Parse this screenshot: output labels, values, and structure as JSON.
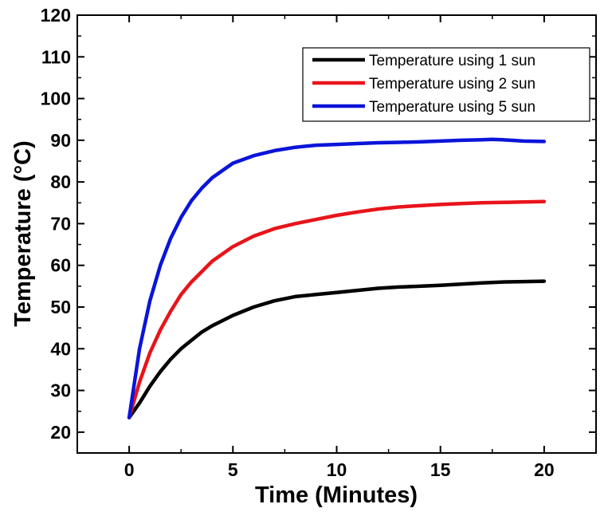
{
  "chart_data": {
    "type": "line",
    "xlabel": "Time (Minutes)",
    "ylabel": "Temperature (°C)",
    "xlim": [
      -2.5,
      22.5
    ],
    "ylim": [
      15,
      120
    ],
    "xticks": [
      0,
      5,
      10,
      15,
      20
    ],
    "yticks": [
      20,
      30,
      40,
      50,
      60,
      70,
      80,
      90,
      100,
      110,
      120
    ],
    "grid": false,
    "legend_position": "top-right",
    "series": [
      {
        "name": "Temperature using 1 sun",
        "color": "#000000",
        "x": [
          0,
          0.5,
          1,
          1.5,
          2,
          2.5,
          3,
          3.5,
          4,
          5,
          6,
          7,
          8,
          9,
          10,
          11,
          12,
          13,
          14,
          15,
          16,
          17,
          18,
          19,
          20
        ],
        "values": [
          23.5,
          27,
          31,
          34.5,
          37.5,
          40,
          42,
          44,
          45.5,
          48,
          50,
          51.5,
          52.5,
          53,
          53.5,
          54,
          54.5,
          54.8,
          55,
          55.2,
          55.5,
          55.8,
          56,
          56.1,
          56.2
        ]
      },
      {
        "name": "Temperature using 2 sun",
        "color": "#e8141a",
        "x": [
          0,
          0.5,
          1,
          1.5,
          2,
          2.5,
          3,
          3.5,
          4,
          5,
          6,
          7,
          8,
          9,
          10,
          11,
          12,
          13,
          14,
          15,
          16,
          17,
          18,
          19,
          20
        ],
        "values": [
          23.5,
          32,
          39,
          44.5,
          49,
          53,
          56,
          58.5,
          61,
          64.5,
          67,
          68.8,
          70,
          71,
          72,
          72.8,
          73.5,
          74,
          74.3,
          74.6,
          74.8,
          75,
          75.1,
          75.2,
          75.3
        ]
      },
      {
        "name": "Temperature using 5 sun",
        "color": "#0a14d9",
        "x": [
          0,
          0.5,
          1,
          1.5,
          2,
          2.5,
          3,
          3.5,
          4,
          5,
          6,
          7,
          8,
          9,
          10,
          11,
          12,
          13,
          14,
          15,
          16,
          17,
          17.5,
          18,
          19,
          20
        ],
        "values": [
          23.5,
          40,
          51.5,
          60,
          66.5,
          71.5,
          75.5,
          78.5,
          81,
          84.5,
          86.3,
          87.5,
          88.3,
          88.8,
          89,
          89.2,
          89.4,
          89.5,
          89.6,
          89.8,
          90,
          90.1,
          90.2,
          90.1,
          89.8,
          89.7
        ]
      }
    ]
  }
}
